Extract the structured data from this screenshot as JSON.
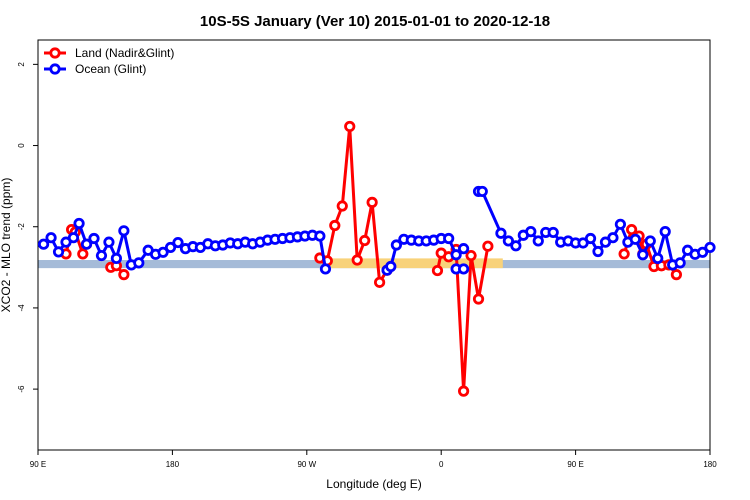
{
  "chart_data": {
    "type": "line",
    "title": "10S-5S January (Ver 10)   2015-01-01 to 2020-12-18",
    "xlabel": "Longitude (deg E)",
    "ylabel": "XCO2 - MLO trend (ppm)",
    "xlim": [
      90,
      450
    ],
    "ylim": [
      -7.5,
      2.6
    ],
    "x_ticks": [
      {
        "value": 90,
        "label": "90 E"
      },
      {
        "value": 162,
        "label": "180"
      },
      {
        "value": 234,
        "label": "90 W"
      },
      {
        "value": 306,
        "label": "0"
      },
      {
        "value": 378,
        "label": "90 E"
      },
      {
        "value": 450,
        "label": "180"
      }
    ],
    "y_ticks": [
      {
        "value": 2,
        "label": "2"
      },
      {
        "value": 0,
        "label": "0"
      },
      {
        "value": -2,
        "label": "-2"
      },
      {
        "value": -4,
        "label": "-4"
      },
      {
        "value": -6,
        "label": "-6"
      }
    ],
    "legend_position": "top-left",
    "bands": [
      {
        "x_from": 90,
        "x_to": 450,
        "y_from": -3.02,
        "y_to": -2.82,
        "color": "#a5bbd8"
      },
      {
        "x_from": 243,
        "x_to": 339,
        "y_from": -3.02,
        "y_to": -2.78,
        "color": "#f8d27a"
      }
    ],
    "series": [
      {
        "name": "Land (Nadir&Glint)",
        "color": "#ff0000",
        "x": [
          105,
          108,
          110,
          114,
          116,
          129,
          132,
          136
        ],
        "y": [
          -2.67,
          -2.07,
          -2.13,
          -2.67,
          -2.43,
          -3.0,
          -2.96,
          -3.18
        ],
        "x_break": [
          [],
          []
        ],
        "segments": [
          {
            "x": [
              105,
              108,
              110,
              114,
              116
            ],
            "y": [
              -2.67,
              -2.07,
              -2.13,
              -2.67,
              -2.43
            ]
          },
          {
            "x": [
              129,
              132,
              136
            ],
            "y": [
              -3.0,
              -2.96,
              -3.18
            ]
          },
          {
            "x": [
              241,
              245,
              249,
              253,
              257,
              261,
              265,
              269,
              273,
              277
            ],
            "y": [
              -2.77,
              -2.84,
              -1.97,
              -1.49,
              0.47,
              -2.82,
              -2.34,
              -1.4,
              -3.37,
              -3.07
            ]
          },
          {
            "x": [
              304,
              306,
              310,
              314,
              318,
              322,
              326,
              331
            ],
            "y": [
              -3.08,
              -2.65,
              -2.74,
              -2.56,
              -6.05,
              -2.71,
              -3.78,
              -2.48
            ]
          },
          {
            "x": [
              404,
              408,
              412,
              414,
              416,
              420,
              424
            ],
            "y": [
              -2.67,
              -2.07,
              -2.23,
              -2.67,
              -2.43,
              -2.98,
              -2.96
            ]
          },
          {
            "x": [
              424,
              428,
              432
            ],
            "y": [
              -2.96,
              -2.94,
              -3.18
            ]
          }
        ]
      },
      {
        "name": "Ocean (Glint)",
        "color": "#0000ff",
        "segments": [
          {
            "x": [
              93,
              97,
              101,
              105,
              109,
              112,
              116,
              120,
              124,
              128,
              132,
              136,
              140,
              144,
              149,
              153,
              157,
              161,
              165,
              169,
              173,
              177,
              181,
              185,
              189,
              193,
              197,
              201,
              205,
              209,
              213,
              217,
              221,
              225,
              229,
              233,
              237,
              241,
              244
            ],
            "y": [
              -2.43,
              -2.27,
              -2.62,
              -2.38,
              -2.27,
              -1.92,
              -2.43,
              -2.29,
              -2.71,
              -2.38,
              -2.78,
              -2.1,
              -2.94,
              -2.89,
              -2.58,
              -2.68,
              -2.63,
              -2.51,
              -2.39,
              -2.54,
              -2.49,
              -2.51,
              -2.42,
              -2.47,
              -2.45,
              -2.4,
              -2.42,
              -2.38,
              -2.42,
              -2.38,
              -2.33,
              -2.31,
              -2.29,
              -2.27,
              -2.25,
              -2.23,
              -2.21,
              -2.23,
              -3.04
            ]
          },
          {
            "x": [
              277,
              279,
              282,
              286,
              290,
              294,
              298,
              302,
              306,
              310,
              314,
              318
            ],
            "y": [
              -3.07,
              -2.98,
              -2.45,
              -2.31,
              -2.33,
              -2.35,
              -2.35,
              -2.33,
              -2.29,
              -2.29,
              -2.69,
              -2.54
            ]
          },
          {
            "x": [
              314,
              318
            ],
            "y": [
              -3.04,
              -3.04
            ]
          },
          {
            "x": [
              326,
              328,
              338,
              342,
              346,
              350,
              354,
              358,
              362,
              366,
              370,
              374,
              378,
              382,
              386,
              390,
              394,
              398,
              402,
              406,
              410,
              414,
              418,
              422,
              426,
              430,
              434,
              438,
              442,
              446,
              450
            ],
            "y": [
              -1.13,
              -1.13,
              -2.16,
              -2.35,
              -2.47,
              -2.21,
              -2.12,
              -2.35,
              -2.14,
              -2.14,
              -2.38,
              -2.35,
              -2.4,
              -2.4,
              -2.29,
              -2.61,
              -2.38,
              -2.27,
              -1.94,
              -2.38,
              -2.31,
              -2.69,
              -2.35,
              -2.78,
              -2.12,
              -2.94,
              -2.89,
              -2.58,
              -2.68,
              -2.63,
              -2.51
            ]
          }
        ]
      }
    ]
  }
}
